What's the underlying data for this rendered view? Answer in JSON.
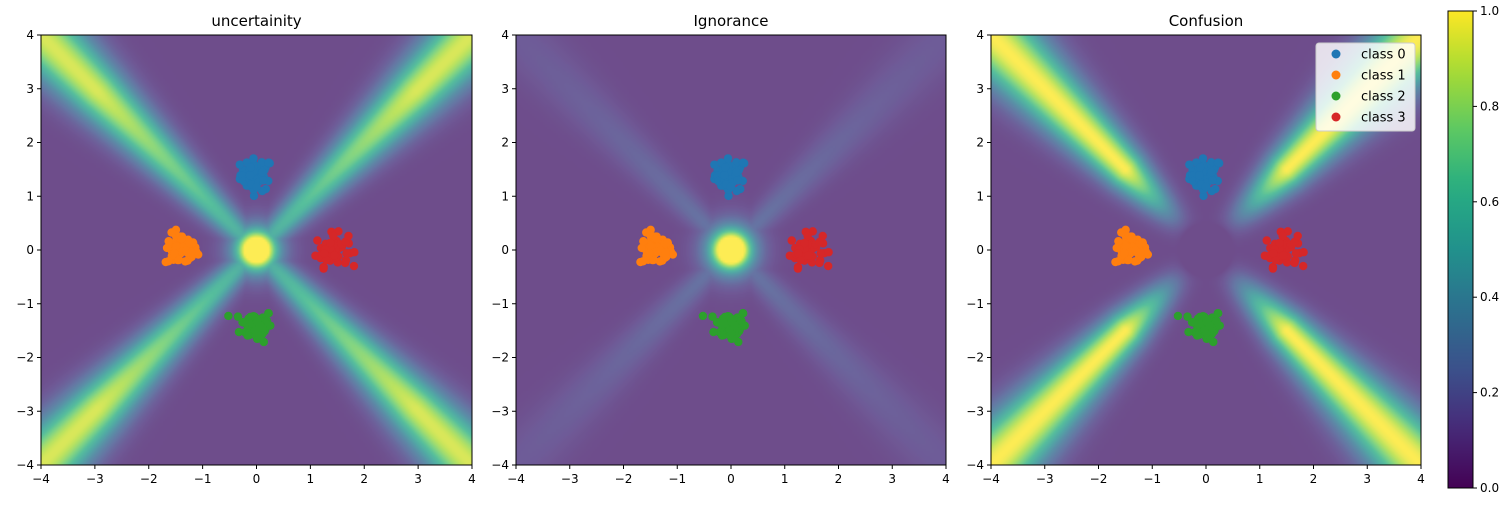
{
  "chart_data": [
    {
      "type": "heatmap",
      "title": "uncertainity",
      "field": "uncertainty",
      "xlim": [
        -4,
        4
      ],
      "ylim": [
        -4,
        4
      ],
      "xticks": [
        -4,
        -3,
        -2,
        -1,
        0,
        1,
        2,
        3,
        4
      ],
      "yticks": [
        -4,
        -3,
        -2,
        -1,
        0,
        1,
        2,
        3,
        4
      ],
      "legend": false
    },
    {
      "type": "heatmap",
      "title": "Ignorance",
      "field": "ignorance",
      "xlim": [
        -4,
        4
      ],
      "ylim": [
        -4,
        4
      ],
      "xticks": [
        -4,
        -3,
        -2,
        -1,
        0,
        1,
        2,
        3,
        4
      ],
      "yticks": [
        -4,
        -3,
        -2,
        -1,
        0,
        1,
        2,
        3,
        4
      ],
      "legend": false
    },
    {
      "type": "heatmap",
      "title": "Confusion",
      "field": "confusion",
      "xlim": [
        -4,
        4
      ],
      "ylim": [
        -4,
        4
      ],
      "xticks": [
        -4,
        -3,
        -2,
        -1,
        0,
        1,
        2,
        3,
        4
      ],
      "yticks": [
        -4,
        -3,
        -2,
        -1,
        0,
        1,
        2,
        3,
        4
      ],
      "legend": true,
      "legend_placement": "top-right"
    }
  ],
  "scatter_classes": [
    {
      "name": "class 0",
      "color": "#1f77b4",
      "center": [
        0.0,
        1.4
      ],
      "spread": 0.15
    },
    {
      "name": "class 1",
      "color": "#ff7f0e",
      "center": [
        -1.4,
        0.0
      ],
      "spread": 0.15
    },
    {
      "name": "class 2",
      "color": "#2ca02c",
      "center": [
        0.0,
        -1.4
      ],
      "spread": 0.15
    },
    {
      "name": "class 3",
      "color": "#d62728",
      "center": [
        1.4,
        0.0
      ],
      "spread": 0.15
    }
  ],
  "colorbar": {
    "ticks": [
      "0.0",
      "0.2",
      "0.4",
      "0.6",
      "0.8",
      "1.0"
    ],
    "colormap": "viridis",
    "range": [
      0,
      1
    ]
  }
}
